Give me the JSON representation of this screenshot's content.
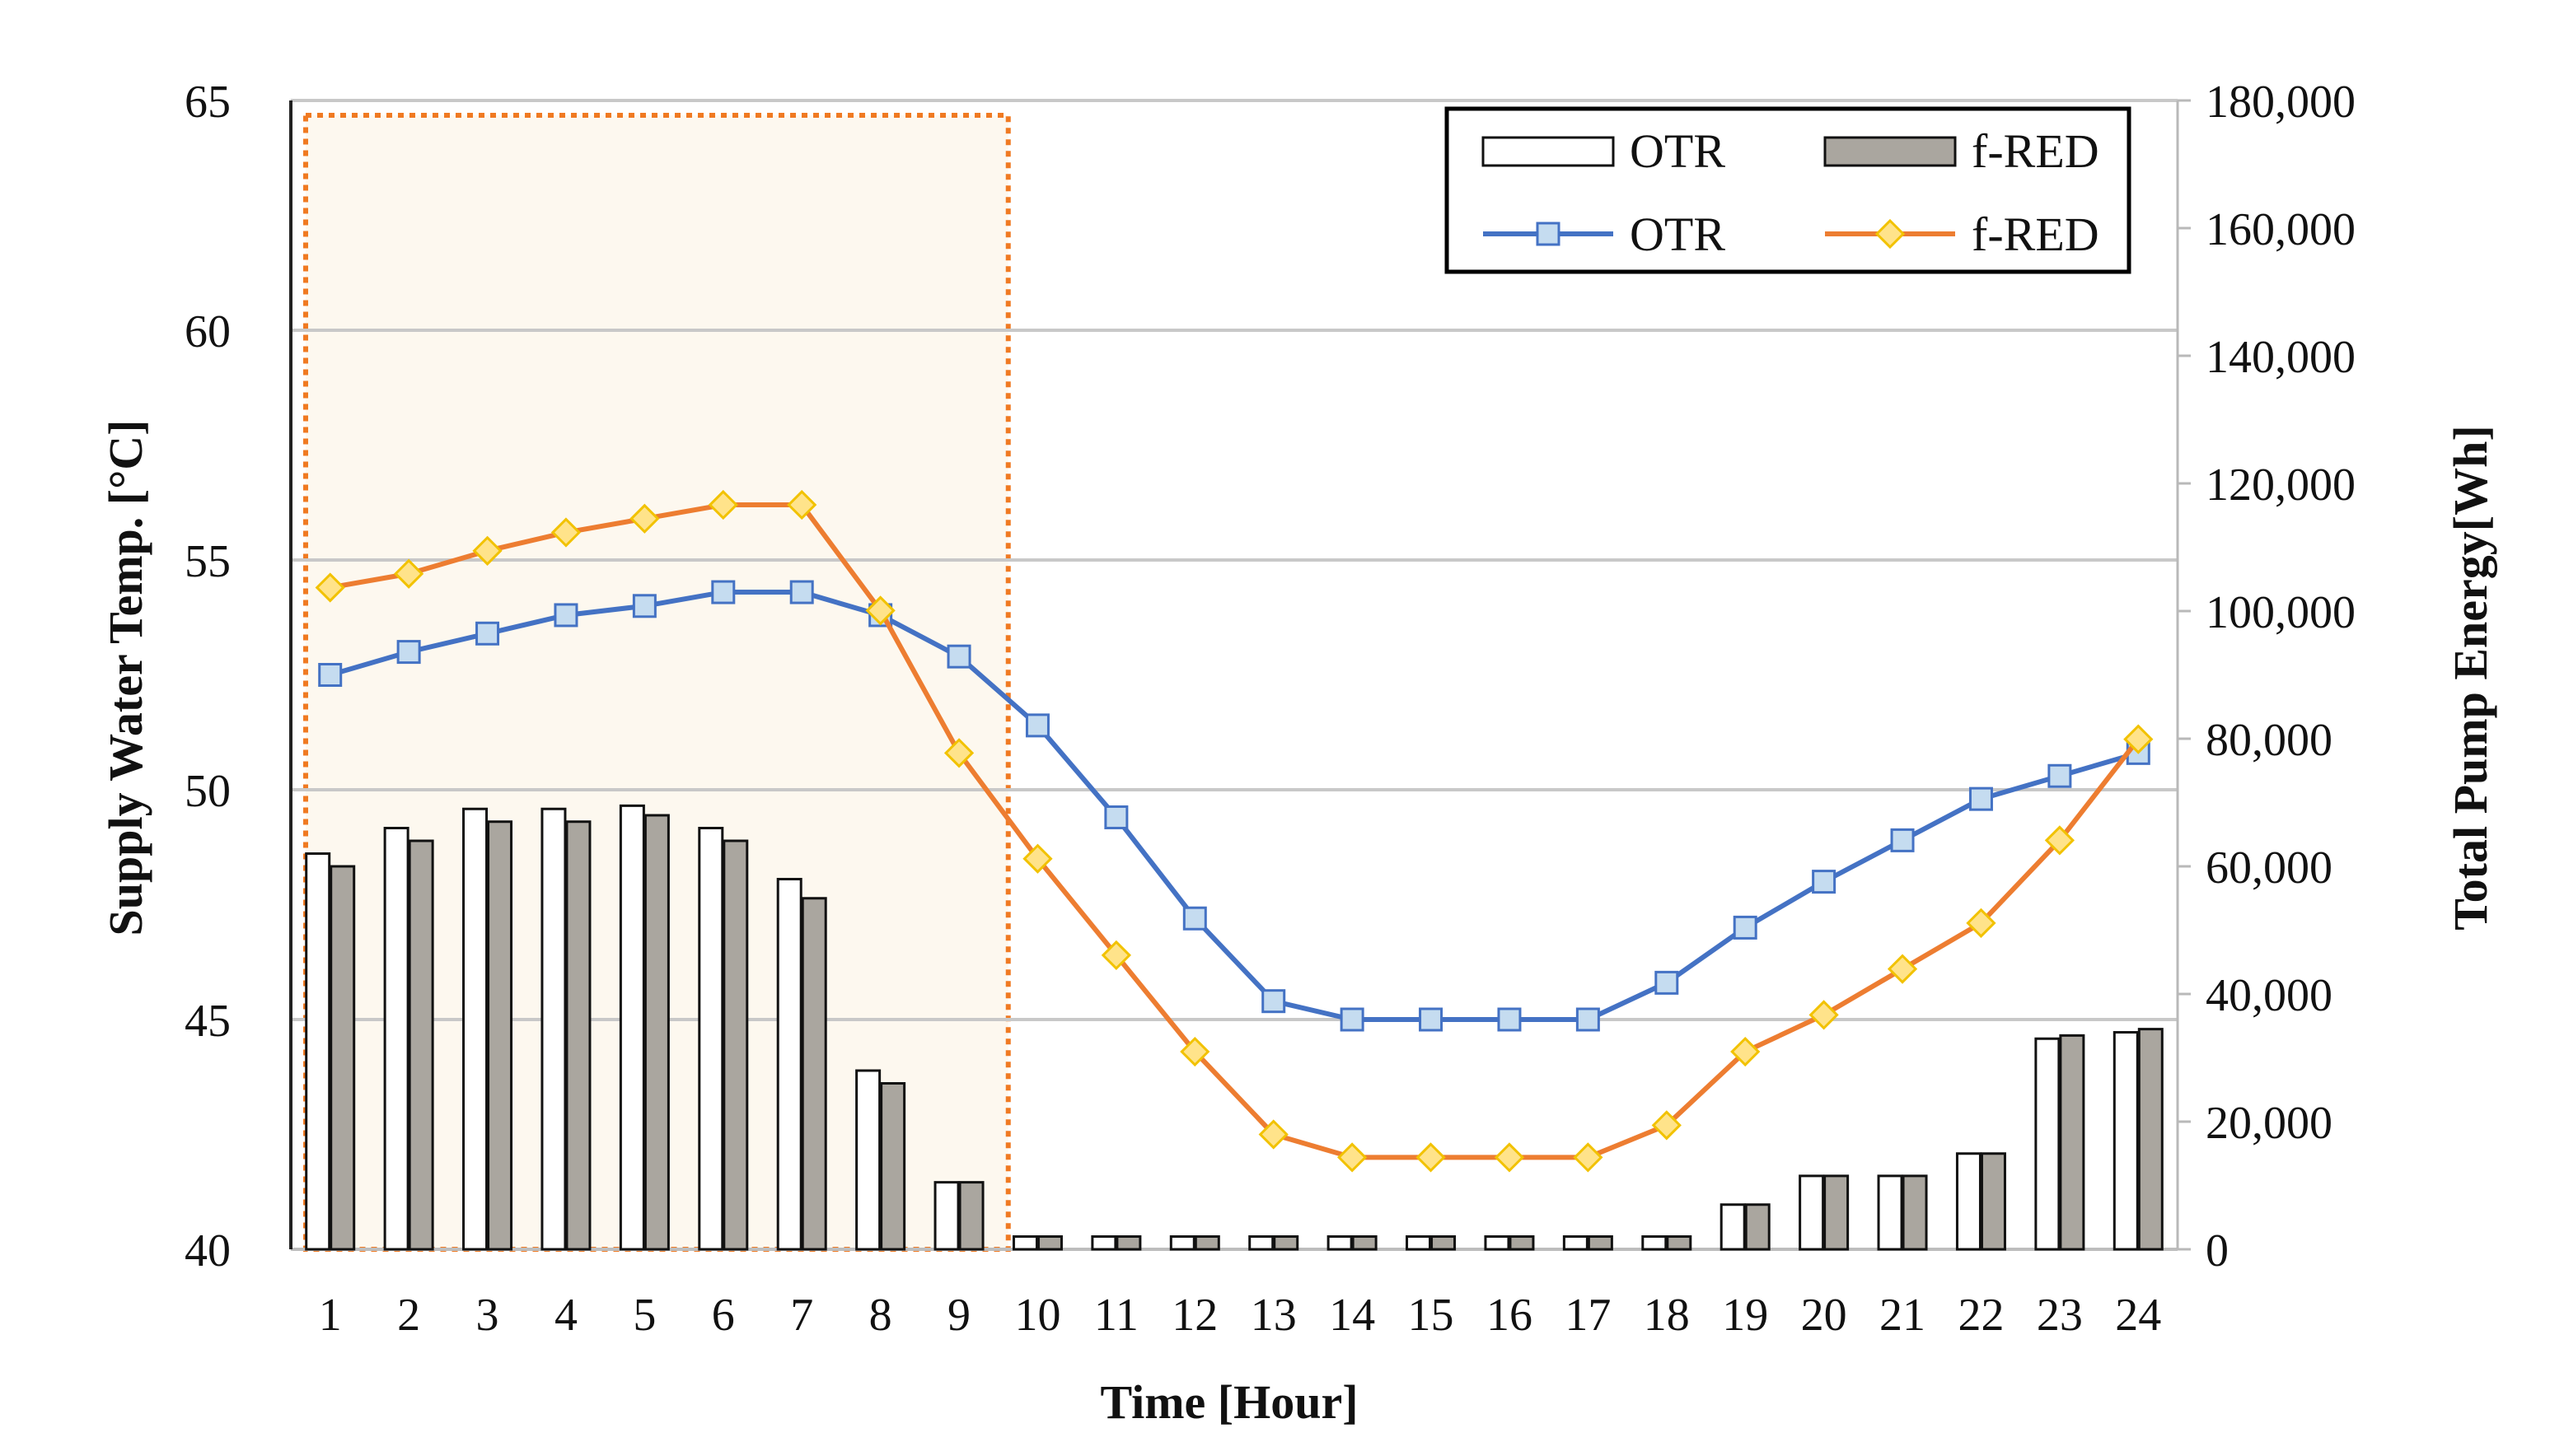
{
  "chart_data": {
    "type": "bar+line",
    "title": "",
    "xlabel": "Time [Hour]",
    "ylabel_left": "Supply Water Temp. [°C]",
    "ylabel_right": "Total Pump Energy[Wh]",
    "categories": [
      "1",
      "2",
      "3",
      "4",
      "5",
      "6",
      "7",
      "8",
      "9",
      "10",
      "11",
      "12",
      "13",
      "14",
      "15",
      "16",
      "17",
      "18",
      "19",
      "20",
      "21",
      "22",
      "23",
      "24"
    ],
    "y_left_range": [
      40,
      65
    ],
    "y_left_ticks": [
      "40",
      "45",
      "50",
      "55",
      "60",
      "65"
    ],
    "y_right_range": [
      0,
      180000
    ],
    "y_right_ticks": [
      "0",
      "20,000",
      "40,000",
      "60,000",
      "80,000",
      "100,000",
      "120,000",
      "140,000",
      "160,000",
      "180,000"
    ],
    "grid": true,
    "legend_position": "top-right",
    "highlight_region": {
      "from_hour": 1,
      "to_hour": 9,
      "color": "#f07a22"
    },
    "bar_series": [
      {
        "name": "OTR",
        "axis": "right",
        "color": "#ffffff",
        "values": [
          62000,
          66000,
          69000,
          69000,
          69500,
          66000,
          58000,
          28000,
          10500,
          2000,
          2000,
          2000,
          2000,
          2000,
          2000,
          2000,
          2000,
          2000,
          7000,
          11500,
          11500,
          15000,
          33000,
          34000
        ]
      },
      {
        "name": "f-RED",
        "axis": "right",
        "color": "#aaa69f",
        "values": [
          60000,
          64000,
          67000,
          67000,
          68000,
          64000,
          55000,
          26000,
          10500,
          2000,
          2000,
          2000,
          2000,
          2000,
          2000,
          2000,
          2000,
          2000,
          7000,
          11500,
          11500,
          15000,
          33500,
          34500
        ]
      }
    ],
    "line_series": [
      {
        "name": "OTR",
        "axis": "left",
        "color": "#4472c4",
        "marker": "square",
        "values": [
          52.5,
          53.0,
          53.4,
          53.8,
          54.0,
          54.3,
          54.3,
          53.8,
          52.9,
          51.4,
          49.4,
          47.2,
          45.4,
          45.0,
          45.0,
          45.0,
          45.0,
          45.8,
          47.0,
          48.0,
          48.9,
          49.8,
          50.3,
          50.8
        ]
      },
      {
        "name": "f-RED",
        "axis": "left",
        "color": "#ed7d31",
        "marker": "diamond",
        "values": [
          54.4,
          54.7,
          55.2,
          55.6,
          55.9,
          56.2,
          56.2,
          53.9,
          50.8,
          48.5,
          46.4,
          44.3,
          42.5,
          42.0,
          42.0,
          42.0,
          42.0,
          42.7,
          44.3,
          45.1,
          46.1,
          47.1,
          48.9,
          51.1
        ]
      }
    ]
  },
  "legend": {
    "bar_otr": "OTR",
    "bar_fred": "f-RED",
    "line_otr": "OTR",
    "line_fred": "f-RED"
  }
}
